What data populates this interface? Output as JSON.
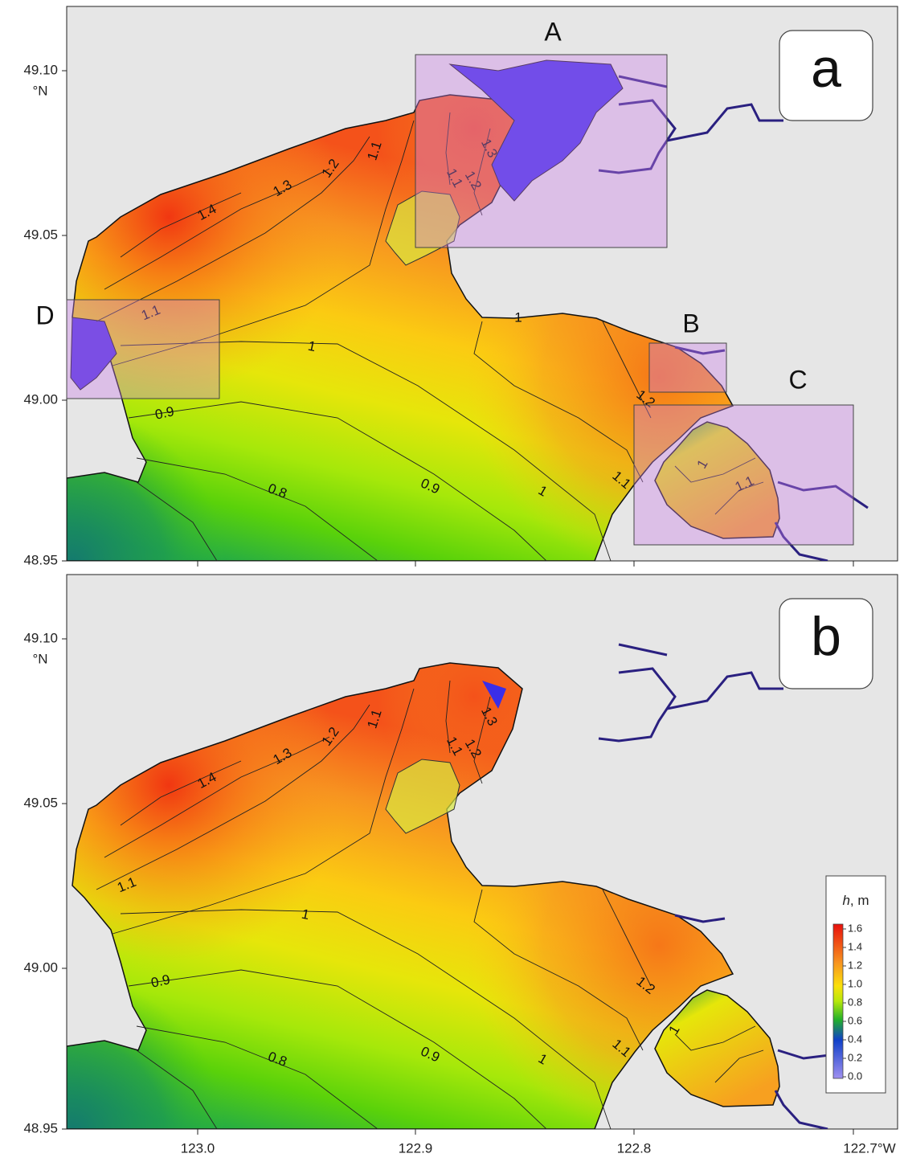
{
  "panels": [
    {
      "label": "a",
      "boxes": [
        {
          "label": "A"
        },
        {
          "label": "B"
        },
        {
          "label": "C"
        },
        {
          "label": "D"
        }
      ],
      "contour_labels": [
        "1.4",
        "1.3",
        "1.2",
        "1.1",
        "1.3",
        "1.2",
        "1.1",
        "1.1",
        "1",
        "0.9",
        "0.8",
        "0.9",
        "1",
        "1",
        "1.2",
        "1.1",
        "1",
        "1.1"
      ]
    },
    {
      "label": "b",
      "contour_labels": [
        "1.4",
        "1.3",
        "1.2",
        "1.1",
        "1.3",
        "1.2",
        "1.1",
        "1.1",
        "1",
        "0.9",
        "0.8",
        "0.9",
        "1",
        "1.2",
        "1.1",
        "1"
      ]
    }
  ],
  "y_axis": {
    "ticks": [
      "49.10",
      "49.05",
      "49.00",
      "48.95"
    ],
    "unit": "°N"
  },
  "x_axis": {
    "ticks": [
      "123.0",
      "122.9",
      "122.8",
      "122.7°W"
    ]
  },
  "legend": {
    "symbol": "h",
    "unit": ", m",
    "ticks": [
      "1.6",
      "1.4",
      "1.2",
      "1.0",
      "0.8",
      "0.6",
      "0.4",
      "0.2",
      "0.0"
    ]
  }
}
